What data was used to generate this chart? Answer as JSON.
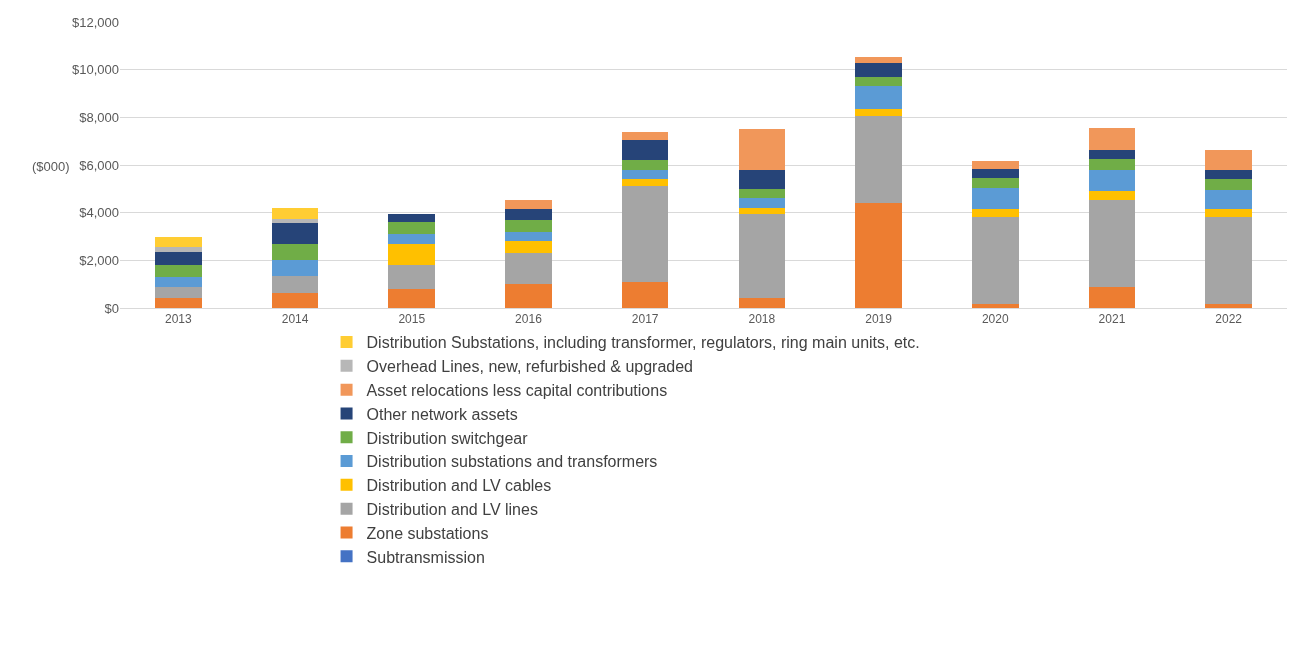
{
  "chart_data": {
    "type": "bar",
    "stacked": true,
    "ylabel": "($000)",
    "categories": [
      "2013",
      "2014",
      "2015",
      "2016",
      "2017",
      "2018",
      "2019",
      "2020",
      "2021",
      "2022"
    ],
    "ylim": [
      0,
      12000
    ],
    "yticks": [
      {
        "value": 0,
        "label": "$0"
      },
      {
        "value": 2000,
        "label": "$2,000"
      },
      {
        "value": 4000,
        "label": "$4,000"
      },
      {
        "value": 6000,
        "label": "$6,000"
      },
      {
        "value": 8000,
        "label": "$8,000"
      },
      {
        "value": 10000,
        "label": "$10,000"
      },
      {
        "value": 12000,
        "label": "$12,000"
      }
    ],
    "grid": "y",
    "legend": "bottom",
    "series": [
      {
        "name": "Subtransmission",
        "color": "#4472c4",
        "values": [
          null,
          null,
          null,
          null,
          null,
          null,
          null,
          null,
          null,
          null
        ]
      },
      {
        "name": "Zone substations",
        "color": "#ed7d31",
        "values": [
          400,
          650,
          800,
          1000,
          1100,
          400,
          4400,
          150,
          900,
          150
        ]
      },
      {
        "name": "Distribution and LV lines",
        "color": "#a5a5a5",
        "values": [
          500,
          700,
          1000,
          1300,
          4000,
          3550,
          3650,
          3650,
          3650,
          3650
        ]
      },
      {
        "name": "Distribution and LV cables",
        "color": "#ffc000",
        "values": [
          0,
          0,
          900,
          500,
          300,
          250,
          300,
          350,
          350,
          350
        ]
      },
      {
        "name": "Distribution substations and transformers",
        "color": "#5b9bd5",
        "values": [
          400,
          650,
          400,
          400,
          400,
          400,
          950,
          900,
          900,
          800
        ]
      },
      {
        "name": "Distribution switchgear",
        "color": "#70ad47",
        "values": [
          500,
          700,
          500,
          500,
          400,
          400,
          400,
          400,
          450,
          450
        ]
      },
      {
        "name": "Other network assets",
        "color": "#264478",
        "values": [
          550,
          850,
          350,
          450,
          850,
          800,
          600,
          400,
          400,
          400
        ]
      },
      {
        "name": "Asset relocations less capital contributions",
        "color": "#f1975a",
        "values": [
          0,
          0,
          0,
          400,
          350,
          1700,
          250,
          300,
          900,
          850
        ]
      },
      {
        "name": "Overhead Lines, new, refurbished & upgraded",
        "color": "#b7b7b7",
        "values": [
          200,
          200,
          0,
          0,
          0,
          0,
          0,
          0,
          0,
          0
        ]
      },
      {
        "name": "Distribution Substations, including transformer, regulators, ring main units, etc.",
        "color": "#ffcd33",
        "values": [
          450,
          450,
          0,
          0,
          0,
          0,
          0,
          0,
          0,
          0
        ]
      }
    ]
  }
}
